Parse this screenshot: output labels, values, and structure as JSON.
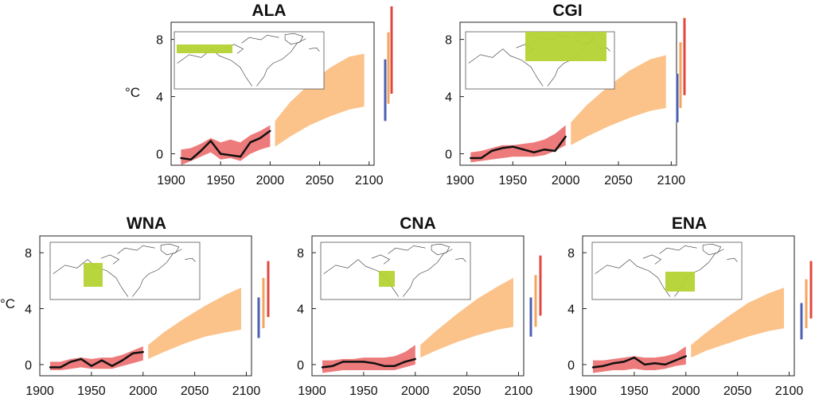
{
  "colors": {
    "observed_band": "#ee7b7b",
    "projection_band": "#fbc28a",
    "observed_line": "#111111",
    "map_region": "#b5d334",
    "bar_blue": "#4b60b3",
    "bar_orange": "#f4a55c",
    "bar_red": "#e0473e"
  },
  "chart_data": [
    {
      "type": "area",
      "title": "ALA",
      "ylabel": "°C",
      "xlim": [
        1900,
        2105
      ],
      "ylim": [
        -0.8,
        9.2
      ],
      "xticks": [
        "1900",
        "1950",
        "2000",
        "2100"
      ],
      "yticks": [
        "0",
        "4",
        "8"
      ],
      "map_region": "Alaska",
      "series": [
        {
          "x": [
            1910,
            1920,
            1930,
            1940,
            1950,
            1960,
            1970,
            1980,
            1990,
            2000
          ],
          "lower": [
            -0.8,
            -0.5,
            -0.2,
            0.1,
            -0.4,
            -0.3,
            -0.5,
            0.0,
            0.3,
            0.5
          ],
          "upper": [
            0.3,
            0.4,
            0.7,
            1.1,
            0.8,
            1.0,
            0.8,
            1.3,
            1.6,
            2.0
          ]
        },
        {
          "x": [
            2005,
            2020,
            2040,
            2060,
            2080,
            2095
          ],
          "lower": [
            0.5,
            1.2,
            2.0,
            2.6,
            3.1,
            3.3
          ],
          "upper": [
            2.3,
            3.6,
            4.9,
            6.0,
            6.8,
            7.0
          ]
        },
        {
          "x": [
            1910,
            1920,
            1930,
            1940,
            1950,
            1960,
            1970,
            1980,
            1990,
            2000
          ],
          "values": [
            -0.3,
            -0.4,
            0.2,
            0.9,
            0.0,
            -0.1,
            -0.2,
            0.8,
            1.1,
            1.6
          ]
        }
      ],
      "bars": [
        {
          "color": "blue",
          "range": [
            2.3,
            6.6
          ]
        },
        {
          "color": "orange",
          "range": [
            3.5,
            8.5
          ]
        },
        {
          "color": "red",
          "range": [
            4.2,
            11.2
          ]
        }
      ]
    },
    {
      "type": "area",
      "title": "CGI",
      "ylabel": "",
      "xlim": [
        1900,
        2105
      ],
      "ylim": [
        -0.8,
        9.2
      ],
      "xticks": [
        "1900",
        "1950",
        "2000",
        "2100"
      ],
      "yticks": [
        "0",
        "4",
        "8"
      ],
      "map_region": "Canada / Greenland / Iceland",
      "series": [
        {
          "x": [
            1910,
            1920,
            1930,
            1940,
            1950,
            1960,
            1970,
            1980,
            1990,
            2000
          ],
          "lower": [
            -0.6,
            -0.5,
            -0.4,
            -0.3,
            -0.2,
            -0.2,
            -0.2,
            -0.1,
            0.2,
            0.6
          ],
          "upper": [
            0.1,
            0.2,
            0.4,
            0.6,
            0.6,
            0.7,
            0.8,
            1.0,
            1.4,
            2.0
          ]
        },
        {
          "x": [
            2005,
            2020,
            2040,
            2060,
            2080,
            2095
          ],
          "lower": [
            0.6,
            1.2,
            1.9,
            2.5,
            3.0,
            3.2
          ],
          "upper": [
            2.2,
            3.4,
            4.7,
            5.8,
            6.6,
            6.9
          ]
        },
        {
          "x": [
            1910,
            1920,
            1930,
            1940,
            1950,
            1960,
            1970,
            1980,
            1990,
            2000
          ],
          "values": [
            -0.3,
            -0.3,
            0.2,
            0.4,
            0.5,
            0.3,
            0.1,
            0.3,
            0.2,
            1.2
          ]
        }
      ],
      "bars": [
        {
          "color": "blue",
          "range": [
            2.2,
            5.6
          ]
        },
        {
          "color": "orange",
          "range": [
            3.2,
            7.8
          ]
        },
        {
          "color": "red",
          "range": [
            4.1,
            9.5
          ]
        }
      ]
    },
    {
      "type": "area",
      "title": "WNA",
      "ylabel": "°C",
      "xlim": [
        1900,
        2105
      ],
      "ylim": [
        -0.8,
        9.2
      ],
      "xticks": [
        "1900",
        "1950",
        "2000",
        "2100"
      ],
      "yticks": [
        "0",
        "4",
        "8"
      ],
      "map_region": "Western North America",
      "series": [
        {
          "x": [
            1910,
            1920,
            1930,
            1940,
            1950,
            1960,
            1970,
            1980,
            1990,
            2000
          ],
          "lower": [
            -0.4,
            -0.4,
            -0.3,
            -0.2,
            -0.3,
            -0.3,
            -0.3,
            -0.1,
            0.1,
            0.3
          ],
          "upper": [
            0.2,
            0.2,
            0.4,
            0.5,
            0.4,
            0.5,
            0.5,
            0.7,
            1.0,
            1.3
          ]
        },
        {
          "x": [
            2005,
            2020,
            2040,
            2060,
            2080,
            2095
          ],
          "lower": [
            0.4,
            0.9,
            1.5,
            2.0,
            2.3,
            2.5
          ],
          "upper": [
            1.4,
            2.3,
            3.3,
            4.2,
            5.0,
            5.5
          ]
        },
        {
          "x": [
            1910,
            1920,
            1930,
            1940,
            1950,
            1960,
            1970,
            1980,
            1990,
            2000
          ],
          "values": [
            -0.2,
            -0.2,
            0.2,
            0.4,
            -0.1,
            0.3,
            -0.1,
            0.3,
            0.8,
            0.9
          ]
        }
      ],
      "bars": [
        {
          "color": "blue",
          "range": [
            1.9,
            4.8
          ]
        },
        {
          "color": "orange",
          "range": [
            2.6,
            6.2
          ]
        },
        {
          "color": "red",
          "range": [
            3.4,
            7.4
          ]
        }
      ]
    },
    {
      "type": "area",
      "title": "CNA",
      "ylabel": "",
      "xlim": [
        1900,
        2105
      ],
      "ylim": [
        -0.8,
        9.2
      ],
      "xticks": [
        "1900",
        "1950",
        "2000",
        "2100"
      ],
      "yticks": [
        "0",
        "4",
        "8"
      ],
      "map_region": "Central North America",
      "series": [
        {
          "x": [
            1910,
            1920,
            1930,
            1940,
            1950,
            1960,
            1970,
            1980,
            1990,
            2000
          ],
          "lower": [
            -0.6,
            -0.5,
            -0.4,
            -0.4,
            -0.4,
            -0.4,
            -0.4,
            -0.4,
            -0.2,
            0.0
          ],
          "upper": [
            0.3,
            0.3,
            0.4,
            0.4,
            0.5,
            0.5,
            0.5,
            0.6,
            0.9,
            1.4
          ]
        },
        {
          "x": [
            2005,
            2020,
            2040,
            2060,
            2080,
            2095
          ],
          "lower": [
            0.5,
            1.0,
            1.6,
            2.1,
            2.5,
            2.7
          ],
          "upper": [
            1.4,
            2.4,
            3.6,
            4.7,
            5.6,
            6.2
          ]
        },
        {
          "x": [
            1910,
            1920,
            1930,
            1940,
            1950,
            1960,
            1970,
            1980,
            1990,
            2000
          ],
          "values": [
            -0.2,
            -0.1,
            0.2,
            0.2,
            0.2,
            0.1,
            -0.1,
            -0.1,
            0.2,
            0.4
          ]
        }
      ],
      "bars": [
        {
          "color": "blue",
          "range": [
            2.0,
            4.8
          ]
        },
        {
          "color": "orange",
          "range": [
            2.7,
            6.4
          ]
        },
        {
          "color": "red",
          "range": [
            3.5,
            7.8
          ]
        }
      ]
    },
    {
      "type": "area",
      "title": "ENA",
      "ylabel": "",
      "xlim": [
        1900,
        2105
      ],
      "ylim": [
        -0.8,
        9.2
      ],
      "xticks": [
        "1900",
        "1950",
        "2000",
        "2100"
      ],
      "yticks": [
        "0",
        "4",
        "8"
      ],
      "map_region": "Eastern North America",
      "series": [
        {
          "x": [
            1910,
            1920,
            1930,
            1940,
            1950,
            1960,
            1970,
            1980,
            1990,
            2000
          ],
          "lower": [
            -0.6,
            -0.5,
            -0.4,
            -0.4,
            -0.3,
            -0.4,
            -0.4,
            -0.3,
            -0.1,
            0.0
          ],
          "upper": [
            0.3,
            0.3,
            0.4,
            0.5,
            0.6,
            0.5,
            0.5,
            0.6,
            0.8,
            1.3
          ]
        },
        {
          "x": [
            2005,
            2020,
            2040,
            2060,
            2080,
            2095
          ],
          "lower": [
            0.5,
            1.0,
            1.5,
            2.0,
            2.4,
            2.6
          ],
          "upper": [
            1.4,
            2.3,
            3.4,
            4.4,
            5.1,
            5.5
          ]
        },
        {
          "x": [
            1910,
            1920,
            1930,
            1940,
            1950,
            1960,
            1970,
            1980,
            1990,
            2000
          ],
          "values": [
            -0.2,
            -0.1,
            0.1,
            0.2,
            0.5,
            0.0,
            0.1,
            0.0,
            0.3,
            0.6
          ]
        }
      ],
      "bars": [
        {
          "color": "blue",
          "range": [
            1.8,
            4.4
          ]
        },
        {
          "color": "orange",
          "range": [
            2.6,
            6.1
          ]
        },
        {
          "color": "red",
          "range": [
            3.3,
            7.4
          ]
        }
      ]
    }
  ]
}
